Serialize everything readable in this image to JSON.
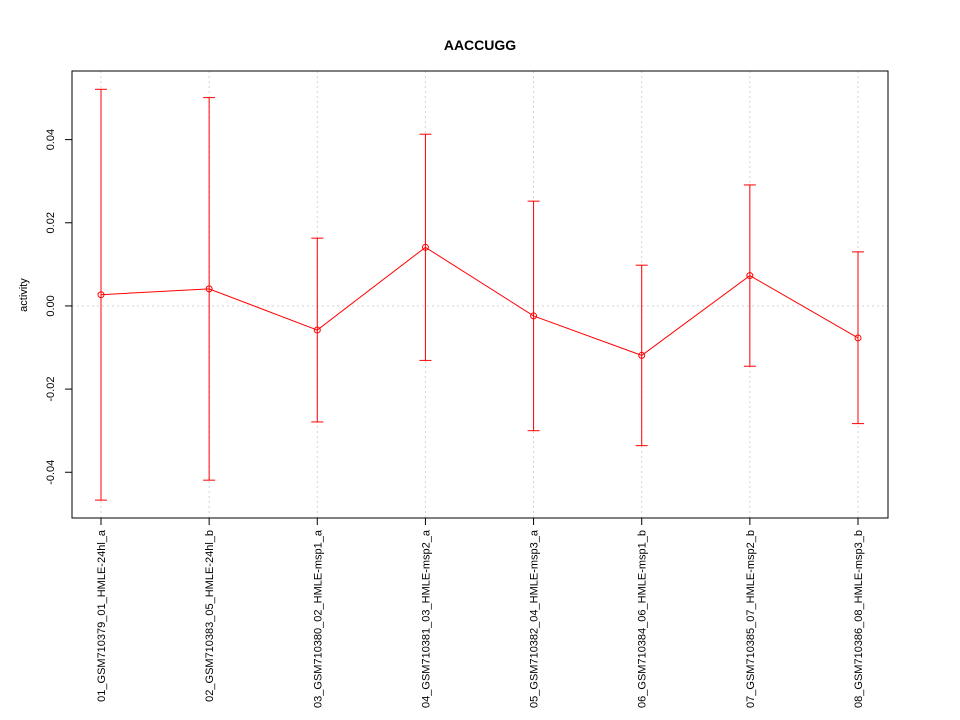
{
  "chart_data": {
    "type": "line",
    "title": "AACCUGG",
    "xlabel": "",
    "ylabel": "activity",
    "categories": [
      "01_GSM710379_01_HMLE-24hl_a",
      "02_GSM710383_05_HMLE-24hl_b",
      "03_GSM710380_02_HMLE-msp1_a",
      "04_GSM710381_03_HMLE-msp2_a",
      "05_GSM710382_04_HMLE-msp3_a",
      "06_GSM710384_06_HMLE-msp1_b",
      "07_GSM710385_07_HMLE-msp2_b",
      "08_GSM710386_08_HMLE-msp3_b"
    ],
    "values": [
      0.0027,
      0.0041,
      -0.0058,
      0.0141,
      -0.0024,
      -0.0119,
      0.0073,
      -0.0077
    ],
    "upper": [
      0.0521,
      0.0501,
      0.0163,
      0.0413,
      0.0252,
      0.0098,
      0.0291,
      0.013
    ],
    "lower": [
      -0.0467,
      -0.0419,
      -0.0279,
      -0.0131,
      -0.03,
      -0.0336,
      -0.0145,
      -0.0283
    ],
    "yticks": [
      -0.04,
      -0.02,
      0.0,
      0.02,
      0.04
    ],
    "ytick_labels": [
      "-0.04",
      "-0.02",
      "0.00",
      "0.02",
      "0.04"
    ],
    "ylim": [
      -0.051,
      0.0565
    ],
    "grid": true,
    "reference_line_y": 0,
    "series_color": "#ff0000",
    "grid_color": "#d3d3d3"
  }
}
